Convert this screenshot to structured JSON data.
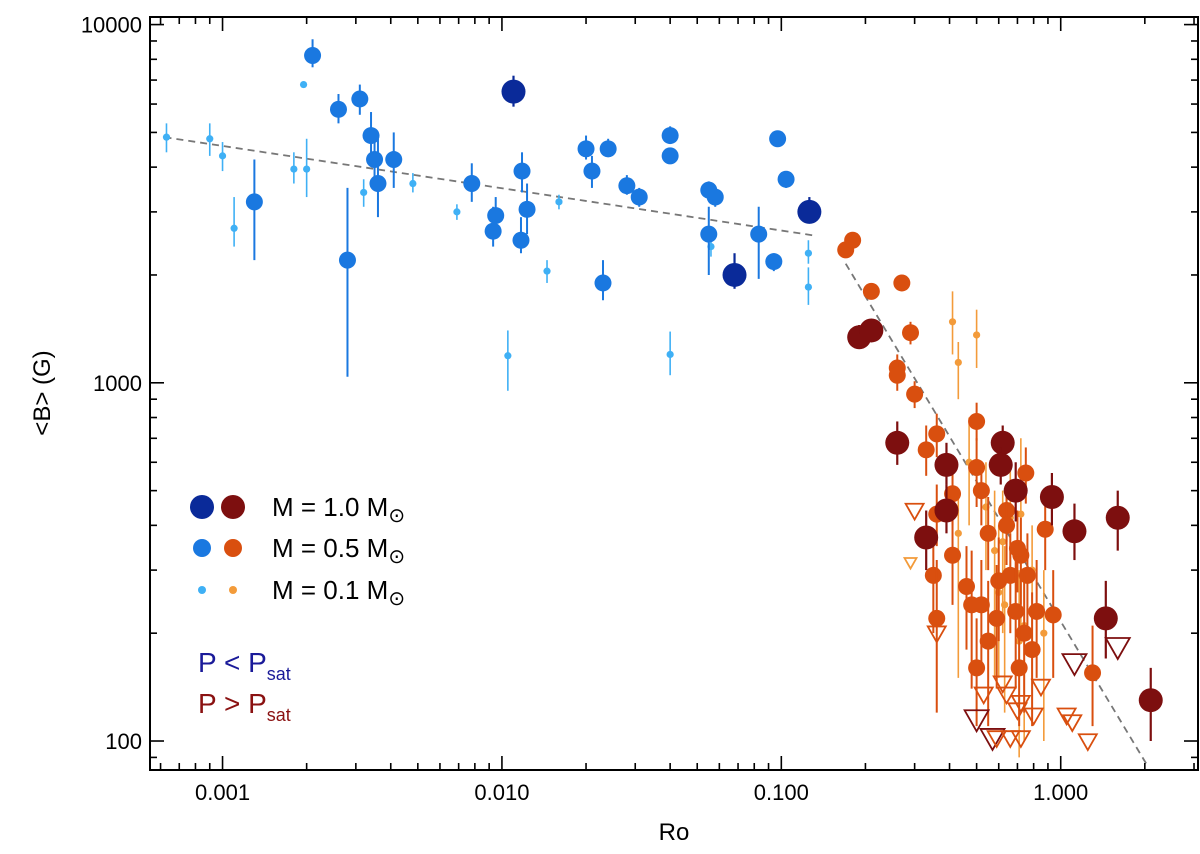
{
  "chart_data": {
    "type": "scatter",
    "xscale": "log",
    "yscale": "log",
    "xlim": [
      0.00055,
      3.1
    ],
    "ylim": [
      83,
      10500
    ],
    "xlabel": "Ro",
    "ylabel": "<B> (G)",
    "xticks": [
      {
        "value": 0.001,
        "label": "0.001"
      },
      {
        "value": 0.01,
        "label": "0.010"
      },
      {
        "value": 0.1,
        "label": "0.100"
      },
      {
        "value": 1.0,
        "label": "1.000"
      }
    ],
    "yticks": [
      {
        "value": 100,
        "label": "100"
      },
      {
        "value": 1000,
        "label": "1000"
      },
      {
        "value": 10000,
        "label": "10000"
      }
    ],
    "colors": {
      "blue_1.0": "#0a2a99",
      "blue_0.5": "#1a78e0",
      "blue_0.1": "#3fb0f5",
      "red_1.0": "#7d0f0f",
      "red_0.5": "#d94f0f",
      "red_0.1": "#f39b3a",
      "fit_line": "#777777"
    },
    "fits": [
      {
        "name": "unsaturated",
        "x": [
          0.00062,
          0.13
        ],
        "y": [
          4850,
          2580
        ]
      },
      {
        "name": "saturated",
        "x": [
          0.17,
          2.05
        ],
        "y": [
          2150,
          85
        ]
      }
    ],
    "legend": [
      {
        "text": "M = 1.0 M",
        "mass": "1.0"
      },
      {
        "text": "M = 0.5 M",
        "mass": "0.5"
      },
      {
        "text": "M = 0.1 M",
        "mass": "0.1"
      }
    ],
    "legend_symbol": "⊙",
    "annotations": [
      {
        "main": "P < P",
        "sub": "sat",
        "color": "#1a1a99"
      },
      {
        "main": "P > P",
        "sub": "sat",
        "color": "#8a1111"
      }
    ],
    "series": [
      {
        "name": "P < Psat, M = 1.0",
        "group": "blue",
        "mass": "1.0",
        "points": [
          [
            0.068,
            2000,
            1830,
            2300
          ],
          [
            0.126,
            3000,
            2850,
            3300
          ],
          [
            0.011,
            6500,
            5900,
            7200
          ]
        ]
      },
      {
        "name": "P < Psat, M = 0.5",
        "group": "blue",
        "mass": "0.5",
        "points": [
          [
            0.0021,
            8200,
            7600,
            9100
          ],
          [
            0.0031,
            6200,
            5600,
            6800
          ],
          [
            0.0026,
            5800,
            5300,
            6400
          ],
          [
            0.0013,
            3200,
            2200,
            4200
          ],
          [
            0.0028,
            2200,
            1040,
            3500
          ],
          [
            0.0034,
            4900,
            4300,
            5700
          ],
          [
            0.0035,
            4200,
            3600,
            5000
          ],
          [
            0.0036,
            3600,
            2900,
            4800
          ],
          [
            0.0041,
            4200,
            3500,
            5000
          ],
          [
            0.0078,
            3600,
            3200,
            4100
          ],
          [
            0.0118,
            3900,
            3400,
            4400
          ],
          [
            0.0123,
            3050,
            2600,
            3600
          ],
          [
            0.0117,
            2500,
            2300,
            2900
          ],
          [
            0.0093,
            2650,
            2400,
            3100
          ],
          [
            0.0095,
            2930,
            2700,
            3300
          ],
          [
            0.02,
            4500,
            4200,
            4900
          ],
          [
            0.024,
            4500,
            4300,
            4800
          ],
          [
            0.021,
            3900,
            3500,
            4300
          ],
          [
            0.028,
            3550,
            3350,
            3800
          ],
          [
            0.031,
            3300,
            3100,
            3500
          ],
          [
            0.023,
            1900,
            1700,
            2200
          ],
          [
            0.04,
            4900,
            4700,
            5200
          ],
          [
            0.04,
            4300,
            4100,
            4500
          ],
          [
            0.055,
            3450,
            3250,
            3650
          ],
          [
            0.058,
            3300,
            3100,
            3500
          ],
          [
            0.055,
            2600,
            2000,
            3100
          ],
          [
            0.083,
            2600,
            1950,
            3100
          ],
          [
            0.094,
            2180,
            2050,
            2300
          ],
          [
            0.097,
            4800,
            4600,
            5000
          ],
          [
            0.104,
            3700,
            3500,
            3900
          ]
        ]
      },
      {
        "name": "P < Psat, M = 0.1",
        "group": "blue",
        "mass": "0.1",
        "points": [
          [
            0.00063,
            4850,
            4400,
            5300
          ],
          [
            0.0009,
            4800,
            4300,
            5300
          ],
          [
            0.001,
            4300,
            3900,
            4700
          ],
          [
            0.0011,
            2700,
            2400,
            3300
          ],
          [
            0.0018,
            3950,
            3600,
            4400
          ],
          [
            0.002,
            3950,
            3300,
            4800
          ],
          [
            0.00195,
            6800,
            6800,
            6800
          ],
          [
            0.0032,
            3400,
            3100,
            3700
          ],
          [
            0.0048,
            3600,
            3400,
            3850
          ],
          [
            0.0069,
            3000,
            2850,
            3150
          ],
          [
            0.0105,
            1190,
            950,
            1400
          ],
          [
            0.016,
            3200,
            3050,
            3350
          ],
          [
            0.0145,
            2050,
            1900,
            2200
          ],
          [
            0.04,
            1200,
            1050,
            1390
          ],
          [
            0.056,
            2400,
            2250,
            2600
          ],
          [
            0.125,
            2300,
            2150,
            2500
          ],
          [
            0.125,
            1850,
            1650,
            2100
          ]
        ]
      },
      {
        "name": "P > Psat, M = 1.0",
        "group": "red",
        "mass": "1.0",
        "points": [
          [
            0.19,
            1340,
            1250,
            1450
          ],
          [
            0.21,
            1400,
            1300,
            1500
          ],
          [
            0.26,
            680,
            590,
            780
          ],
          [
            0.39,
            590,
            520,
            680
          ],
          [
            0.39,
            440,
            380,
            520
          ],
          [
            0.33,
            370,
            300,
            440
          ],
          [
            0.62,
            680,
            600,
            760
          ],
          [
            0.61,
            590,
            520,
            660
          ],
          [
            0.69,
            500,
            410,
            600
          ],
          [
            0.93,
            480,
            400,
            560
          ],
          [
            1.12,
            385,
            320,
            460
          ],
          [
            1.6,
            420,
            340,
            500
          ],
          [
            1.45,
            220,
            170,
            280
          ],
          [
            2.1,
            130,
            100,
            160
          ]
        ]
      },
      {
        "name": "P > Psat, M = 0.5",
        "group": "red",
        "mass": "0.5",
        "points": [
          [
            0.17,
            2350,
            2250,
            2450
          ],
          [
            0.18,
            2500,
            2400,
            2600
          ],
          [
            0.21,
            1800,
            1720,
            1880
          ],
          [
            0.27,
            1900,
            1820,
            1980
          ],
          [
            0.29,
            1380,
            1280,
            1480
          ],
          [
            0.3,
            930,
            850,
            1010
          ],
          [
            0.26,
            1100,
            1000,
            1200
          ],
          [
            0.26,
            1050,
            950,
            1150
          ],
          [
            0.33,
            650,
            550,
            760
          ],
          [
            0.36,
            720,
            620,
            820
          ],
          [
            0.5,
            780,
            690,
            880
          ],
          [
            0.36,
            430,
            350,
            520
          ],
          [
            0.41,
            490,
            400,
            570
          ],
          [
            0.5,
            580,
            450,
            700
          ],
          [
            0.52,
            500,
            400,
            600
          ],
          [
            0.55,
            380,
            300,
            480
          ],
          [
            0.64,
            440,
            360,
            520
          ],
          [
            0.75,
            560,
            460,
            660
          ],
          [
            0.88,
            390,
            300,
            480
          ],
          [
            0.35,
            290,
            200,
            380
          ],
          [
            0.41,
            330,
            240,
            420
          ],
          [
            0.46,
            270,
            180,
            350
          ],
          [
            0.52,
            240,
            160,
            320
          ],
          [
            0.6,
            280,
            190,
            370
          ],
          [
            0.66,
            290,
            200,
            380
          ],
          [
            0.72,
            330,
            240,
            420
          ],
          [
            0.76,
            290,
            200,
            380
          ],
          [
            0.82,
            230,
            150,
            320
          ],
          [
            0.36,
            220,
            120,
            320
          ],
          [
            0.48,
            240,
            140,
            340
          ],
          [
            0.55,
            190,
            110,
            280
          ],
          [
            0.59,
            220,
            140,
            310
          ],
          [
            0.69,
            230,
            140,
            330
          ],
          [
            0.74,
            200,
            120,
            290
          ],
          [
            0.79,
            180,
            110,
            260
          ],
          [
            0.5,
            160,
            110,
            220
          ],
          [
            0.71,
            160,
            110,
            220
          ],
          [
            0.94,
            225,
            150,
            300
          ],
          [
            1.3,
            155,
            110,
            210
          ],
          [
            0.64,
            400,
            310,
            490
          ],
          [
            0.7,
            345,
            260,
            440
          ]
        ]
      },
      {
        "name": "P > Psat, M = 0.1",
        "group": "red",
        "mass": "0.1",
        "points": [
          [
            0.41,
            1480,
            1200,
            1800
          ],
          [
            0.5,
            1360,
            1100,
            1600
          ],
          [
            0.43,
            1140,
            900,
            1300
          ],
          [
            0.47,
            600,
            400,
            800
          ],
          [
            0.54,
            450,
            300,
            600
          ],
          [
            0.66,
            420,
            200,
            600
          ],
          [
            0.62,
            360,
            200,
            500
          ],
          [
            0.72,
            430,
            200,
            700
          ],
          [
            0.43,
            380,
            150,
            500
          ],
          [
            0.58,
            340,
            150,
            500
          ],
          [
            0.79,
            300,
            150,
            400
          ],
          [
            0.6,
            260,
            150,
            400
          ],
          [
            0.63,
            240,
            120,
            350
          ],
          [
            0.71,
            190,
            90,
            300
          ],
          [
            0.74,
            210,
            100,
            300
          ],
          [
            0.87,
            200,
            100,
            300
          ]
        ]
      },
      {
        "name": "Upper limits",
        "group": "limit",
        "mass": "limit",
        "points": [
          [
            0.3,
            440,
            "0.5"
          ],
          [
            0.29,
            315,
            "0.1"
          ],
          [
            0.36,
            200,
            "0.5"
          ],
          [
            0.53,
            135,
            "0.5"
          ],
          [
            0.57,
            102,
            "1.0"
          ],
          [
            0.59,
            102,
            "0.5"
          ],
          [
            0.66,
            102,
            "0.5"
          ],
          [
            0.72,
            102,
            "0.5"
          ],
          [
            0.62,
            145,
            "0.5"
          ],
          [
            0.7,
            122,
            "0.5"
          ],
          [
            0.85,
            142,
            "0.5"
          ],
          [
            0.72,
            128,
            "0.5"
          ],
          [
            0.5,
            115,
            "1.0"
          ],
          [
            0.64,
            135,
            "0.5"
          ],
          [
            0.8,
            118,
            "0.5"
          ],
          [
            1.1,
            113,
            "0.5"
          ],
          [
            1.12,
            165,
            "1.0"
          ],
          [
            1.6,
            183,
            "1.0"
          ],
          [
            1.25,
            100,
            "0.5"
          ],
          [
            1.05,
            118,
            "0.5"
          ]
        ]
      }
    ]
  }
}
